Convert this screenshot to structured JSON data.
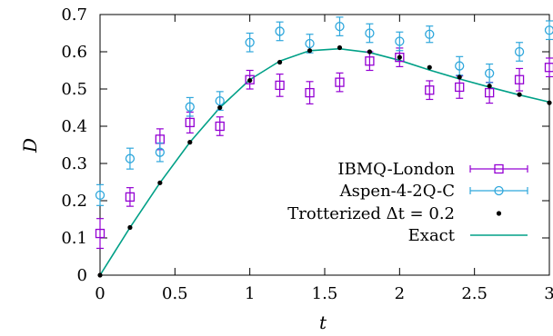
{
  "chart_data": {
    "type": "scatter",
    "title": "",
    "xlabel": "t",
    "ylabel": "D",
    "xlim": [
      0,
      3
    ],
    "ylim": [
      0,
      0.7
    ],
    "xticks": [
      0,
      0.5,
      1,
      1.5,
      2,
      2.5,
      3
    ],
    "xtick_labels": [
      "0",
      "0.5",
      "1",
      "1.5",
      "2",
      "2.5",
      "3"
    ],
    "yticks": [
      0,
      0.1,
      0.2,
      0.3,
      0.4,
      0.5,
      0.6,
      0.7
    ],
    "ytick_labels": [
      "0",
      "0.1",
      "0.2",
      "0.3",
      "0.4",
      "0.5",
      "0.6",
      "0.7"
    ],
    "grid": false,
    "legend_position": "bottom-right",
    "series": [
      {
        "name": "IBMQ-London",
        "kind": "errorbar",
        "marker": "square",
        "color": "#9400d3",
        "x": [
          0,
          0.2,
          0.4,
          0.6,
          0.8,
          1.0,
          1.2,
          1.4,
          1.6,
          1.8,
          2.0,
          2.2,
          2.4,
          2.6,
          2.8,
          3.0
        ],
        "y": [
          0.112,
          0.21,
          0.365,
          0.41,
          0.4,
          0.525,
          0.51,
          0.49,
          0.518,
          0.575,
          0.585,
          0.497,
          0.505,
          0.49,
          0.525,
          0.558
        ],
        "yerr": [
          0.04,
          0.025,
          0.028,
          0.028,
          0.025,
          0.025,
          0.03,
          0.03,
          0.025,
          0.025,
          0.025,
          0.025,
          0.03,
          0.028,
          0.03,
          0.025
        ]
      },
      {
        "name": "Aspen-4-2Q-C",
        "kind": "errorbar",
        "marker": "circle",
        "color": "#2fa7dc",
        "x": [
          0,
          0.2,
          0.4,
          0.6,
          0.8,
          1.0,
          1.2,
          1.4,
          1.6,
          1.8,
          2.0,
          2.2,
          2.4,
          2.6,
          2.8,
          3.0
        ],
        "y": [
          0.215,
          0.313,
          0.33,
          0.452,
          0.468,
          0.625,
          0.655,
          0.622,
          0.668,
          0.65,
          0.628,
          0.647,
          0.562,
          0.542,
          0.6,
          0.658
        ],
        "yerr": [
          0.028,
          0.028,
          0.025,
          0.025,
          0.025,
          0.025,
          0.025,
          0.025,
          0.025,
          0.025,
          0.025,
          0.022,
          0.025,
          0.025,
          0.025,
          0.025
        ]
      },
      {
        "name": "Trotterized Δt = 0.2",
        "kind": "points",
        "marker": "dot",
        "color": "#000000",
        "x": [
          0,
          0.2,
          0.4,
          0.6,
          0.8,
          1.0,
          1.2,
          1.4,
          1.6,
          1.8,
          2.0,
          2.2,
          2.4,
          2.6,
          2.8,
          3.0
        ],
        "y": [
          0.0,
          0.128,
          0.248,
          0.357,
          0.45,
          0.523,
          0.572,
          0.603,
          0.611,
          0.6,
          0.585,
          0.558,
          0.532,
          0.508,
          0.485,
          0.463
        ]
      },
      {
        "name": "Exact",
        "kind": "line",
        "color": "#00a087",
        "x": [
          0,
          0.2,
          0.4,
          0.6,
          0.8,
          1.0,
          1.2,
          1.4,
          1.6,
          1.8,
          2.0,
          2.2,
          2.4,
          2.6,
          2.8,
          3.0
        ],
        "y": [
          0.0,
          0.128,
          0.248,
          0.357,
          0.45,
          0.525,
          0.575,
          0.603,
          0.608,
          0.598,
          0.577,
          0.551,
          0.527,
          0.505,
          0.484,
          0.465
        ]
      }
    ]
  }
}
